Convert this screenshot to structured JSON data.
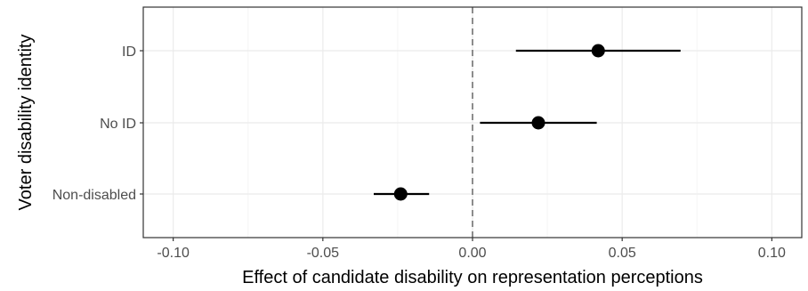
{
  "chart_data": {
    "type": "scatter",
    "title": "",
    "xlabel": "Effect of candidate disability on representation perceptions",
    "ylabel": "Voter disability identity",
    "xlim": [
      -0.11,
      0.11
    ],
    "x_ticks": [
      -0.1,
      -0.05,
      0.0,
      0.05,
      0.1
    ],
    "x_tick_labels": [
      "-0.10",
      "-0.05",
      "0.00",
      "0.05",
      "0.10"
    ],
    "categories": [
      "ID",
      "No ID",
      "Non-disabled"
    ],
    "series": [
      {
        "points": [
          {
            "category": "ID",
            "estimate": 0.042,
            "ci_low": 0.0145,
            "ci_high": 0.0695
          },
          {
            "category": "No ID",
            "estimate": 0.022,
            "ci_low": 0.0025,
            "ci_high": 0.0415
          },
          {
            "category": "Non-disabled",
            "estimate": -0.024,
            "ci_low": -0.033,
            "ci_high": -0.0145
          }
        ]
      }
    ],
    "reference_line": {
      "x": 0.0,
      "style": "dashed",
      "color": "#808080"
    },
    "grid": true,
    "legend": "none",
    "colors": {
      "point": "#000000",
      "errorbar": "#000000",
      "grid_major": "#ebebeb",
      "grid_minor": "#f5f5f5",
      "panel_border": "#333333",
      "tick_text": "#4d4d4d"
    }
  }
}
